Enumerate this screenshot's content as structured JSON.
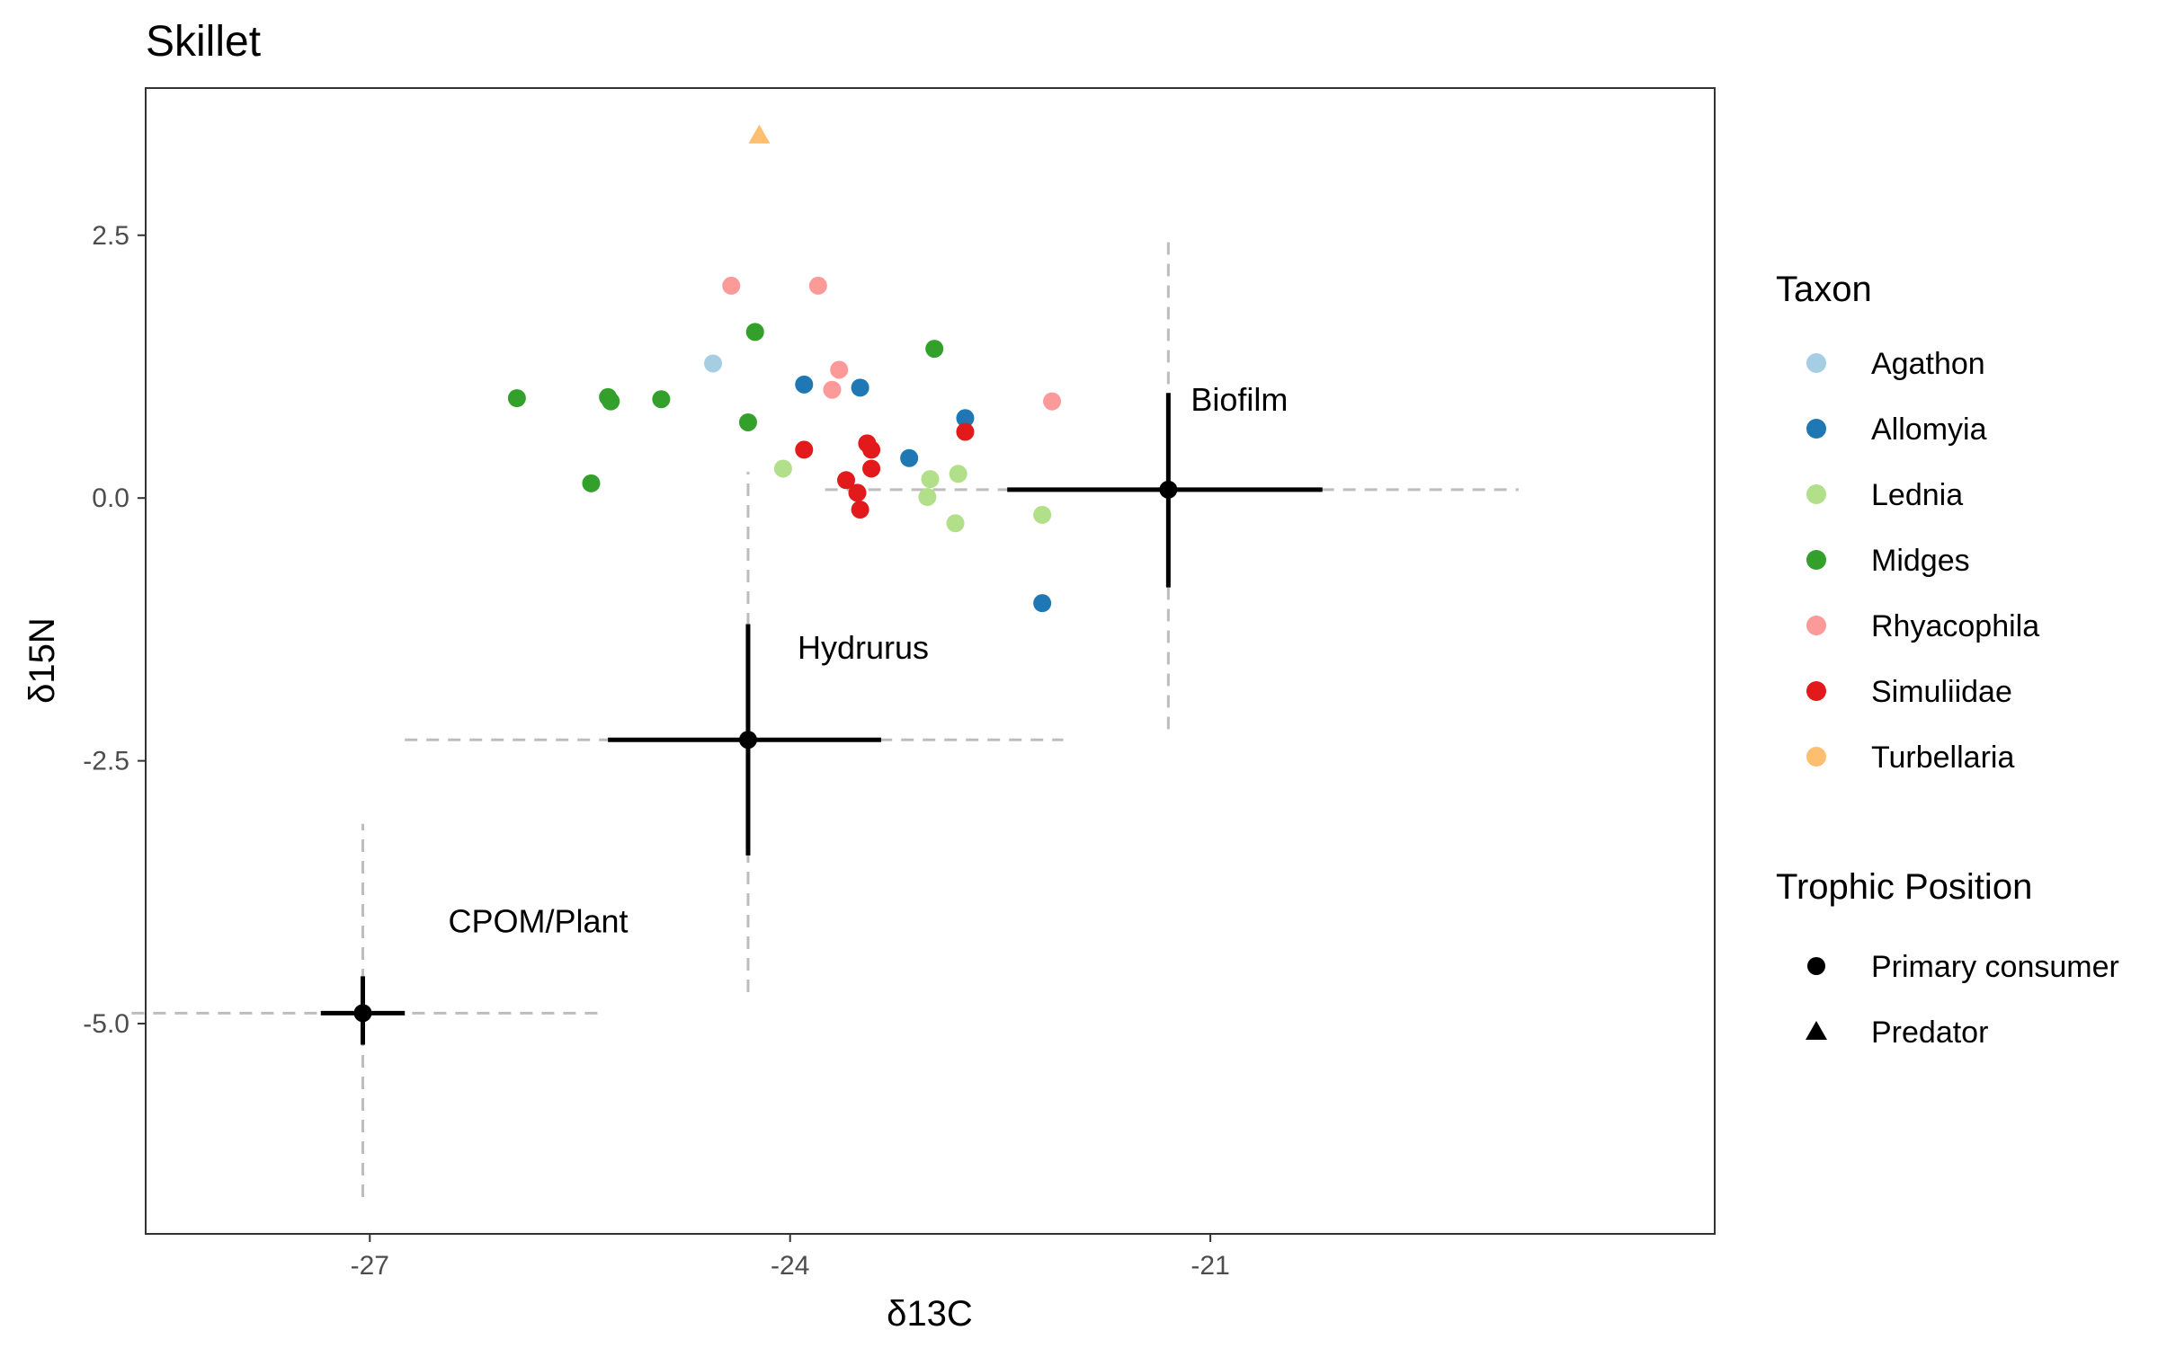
{
  "chart_data": {
    "type": "scatter",
    "title": "Skillet",
    "xlabel": "δ13C",
    "ylabel": "δ15N",
    "xlim": [
      -28.6,
      -17.4
    ],
    "ylim": [
      -7.0,
      3.9
    ],
    "x_ticks": [
      -27,
      -24,
      -21
    ],
    "x_tick_labels": [
      "-27",
      "-24",
      "-21"
    ],
    "y_ticks": [
      2.5,
      0.0,
      -2.5,
      -5.0
    ],
    "y_tick_labels": [
      "2.5",
      "0.0",
      "-2.5",
      "-5.0"
    ],
    "grid": false,
    "legend_position": "right",
    "taxon_legend": {
      "title": "Taxon",
      "items": [
        {
          "label": "Agathon",
          "color": "#a6cee3"
        },
        {
          "label": "Allomyia",
          "color": "#1f78b4"
        },
        {
          "label": "Lednia",
          "color": "#b2df8a"
        },
        {
          "label": "Midges",
          "color": "#33a02c"
        },
        {
          "label": "Rhyacophila",
          "color": "#fb9a99"
        },
        {
          "label": "Simuliidae",
          "color": "#e31a1c"
        },
        {
          "label": "Turbellaria",
          "color": "#fdbf6f"
        }
      ]
    },
    "trophic_legend": {
      "title": "Trophic Position",
      "items": [
        {
          "label": "Primary consumer",
          "shape": "circle"
        },
        {
          "label": "Predator",
          "shape": "triangle"
        }
      ]
    },
    "sources": [
      {
        "label": "CPOM/Plant",
        "x": -27.05,
        "y": -4.9,
        "x_err_solid": [
          -27.35,
          -26.75
        ],
        "y_err_solid": [
          -5.2,
          -4.55
        ],
        "x_err_dashed": [
          -28.7,
          -25.35
        ],
        "y_err_dashed": [
          -6.65,
          -3.1
        ]
      },
      {
        "label": "Hydrurus",
        "x": -24.3,
        "y": -2.3,
        "x_err_solid": [
          -25.3,
          -23.35
        ],
        "y_err_solid": [
          -3.4,
          -1.2
        ],
        "x_err_dashed": [
          -26.75,
          -22.05
        ],
        "y_err_dashed": [
          -4.7,
          0.25
        ]
      },
      {
        "label": "Biofilm",
        "x": -21.3,
        "y": 0.08,
        "x_err_solid": [
          -22.45,
          -20.2
        ],
        "y_err_solid": [
          -0.85,
          1.0
        ],
        "x_err_dashed": [
          -23.75,
          -18.8
        ],
        "y_err_dashed": [
          -2.2,
          2.45
        ]
      }
    ],
    "points": [
      {
        "taxon": "Agathon",
        "trophic": "Primary consumer",
        "x": -24.55,
        "y": 1.28
      },
      {
        "taxon": "Allomyia",
        "trophic": "Primary consumer",
        "x": -23.9,
        "y": 1.08
      },
      {
        "taxon": "Allomyia",
        "trophic": "Primary consumer",
        "x": -23.5,
        "y": 1.05
      },
      {
        "taxon": "Allomyia",
        "trophic": "Primary consumer",
        "x": -23.15,
        "y": 0.38
      },
      {
        "taxon": "Allomyia",
        "trophic": "Primary consumer",
        "x": -22.75,
        "y": 0.76
      },
      {
        "taxon": "Allomyia",
        "trophic": "Primary consumer",
        "x": -22.2,
        "y": -1.0
      },
      {
        "taxon": "Lednia",
        "trophic": "Primary consumer",
        "x": -24.05,
        "y": 0.28
      },
      {
        "taxon": "Lednia",
        "trophic": "Primary consumer",
        "x": -23.0,
        "y": 0.18
      },
      {
        "taxon": "Lednia",
        "trophic": "Primary consumer",
        "x": -23.02,
        "y": 0.01
      },
      {
        "taxon": "Lednia",
        "trophic": "Primary consumer",
        "x": -22.8,
        "y": 0.23
      },
      {
        "taxon": "Lednia",
        "trophic": "Primary consumer",
        "x": -22.82,
        "y": -0.24
      },
      {
        "taxon": "Lednia",
        "trophic": "Primary consumer",
        "x": -22.2,
        "y": -0.16
      },
      {
        "taxon": "Midges",
        "trophic": "Primary consumer",
        "x": -25.95,
        "y": 0.95
      },
      {
        "taxon": "Midges",
        "trophic": "Primary consumer",
        "x": -25.3,
        "y": 0.96
      },
      {
        "taxon": "Midges",
        "trophic": "Primary consumer",
        "x": -25.28,
        "y": 0.92
      },
      {
        "taxon": "Midges",
        "trophic": "Primary consumer",
        "x": -24.92,
        "y": 0.94
      },
      {
        "taxon": "Midges",
        "trophic": "Primary consumer",
        "x": -25.42,
        "y": 0.14
      },
      {
        "taxon": "Midges",
        "trophic": "Primary consumer",
        "x": -24.25,
        "y": 1.58
      },
      {
        "taxon": "Midges",
        "trophic": "Primary consumer",
        "x": -24.3,
        "y": 0.72
      },
      {
        "taxon": "Midges",
        "trophic": "Primary consumer",
        "x": -22.97,
        "y": 1.42
      },
      {
        "taxon": "Rhyacophila",
        "trophic": "Primary consumer",
        "x": -24.42,
        "y": 2.02
      },
      {
        "taxon": "Rhyacophila",
        "trophic": "Primary consumer",
        "x": -23.8,
        "y": 2.02
      },
      {
        "taxon": "Rhyacophila",
        "trophic": "Primary consumer",
        "x": -23.65,
        "y": 1.22
      },
      {
        "taxon": "Rhyacophila",
        "trophic": "Primary consumer",
        "x": -23.7,
        "y": 1.03
      },
      {
        "taxon": "Rhyacophila",
        "trophic": "Primary consumer",
        "x": -22.13,
        "y": 0.92
      },
      {
        "taxon": "Simuliidae",
        "trophic": "Primary consumer",
        "x": -23.9,
        "y": 0.46
      },
      {
        "taxon": "Simuliidae",
        "trophic": "Primary consumer",
        "x": -23.45,
        "y": 0.52
      },
      {
        "taxon": "Simuliidae",
        "trophic": "Primary consumer",
        "x": -23.42,
        "y": 0.46
      },
      {
        "taxon": "Simuliidae",
        "trophic": "Primary consumer",
        "x": -23.42,
        "y": 0.28
      },
      {
        "taxon": "Simuliidae",
        "trophic": "Primary consumer",
        "x": -23.6,
        "y": 0.17
      },
      {
        "taxon": "Simuliidae",
        "trophic": "Primary consumer",
        "x": -23.52,
        "y": 0.05
      },
      {
        "taxon": "Simuliidae",
        "trophic": "Primary consumer",
        "x": -23.5,
        "y": -0.11
      },
      {
        "taxon": "Simuliidae",
        "trophic": "Primary consumer",
        "x": -22.75,
        "y": 0.63
      },
      {
        "taxon": "Turbellaria",
        "trophic": "Predator",
        "x": -24.22,
        "y": 3.45
      }
    ]
  }
}
